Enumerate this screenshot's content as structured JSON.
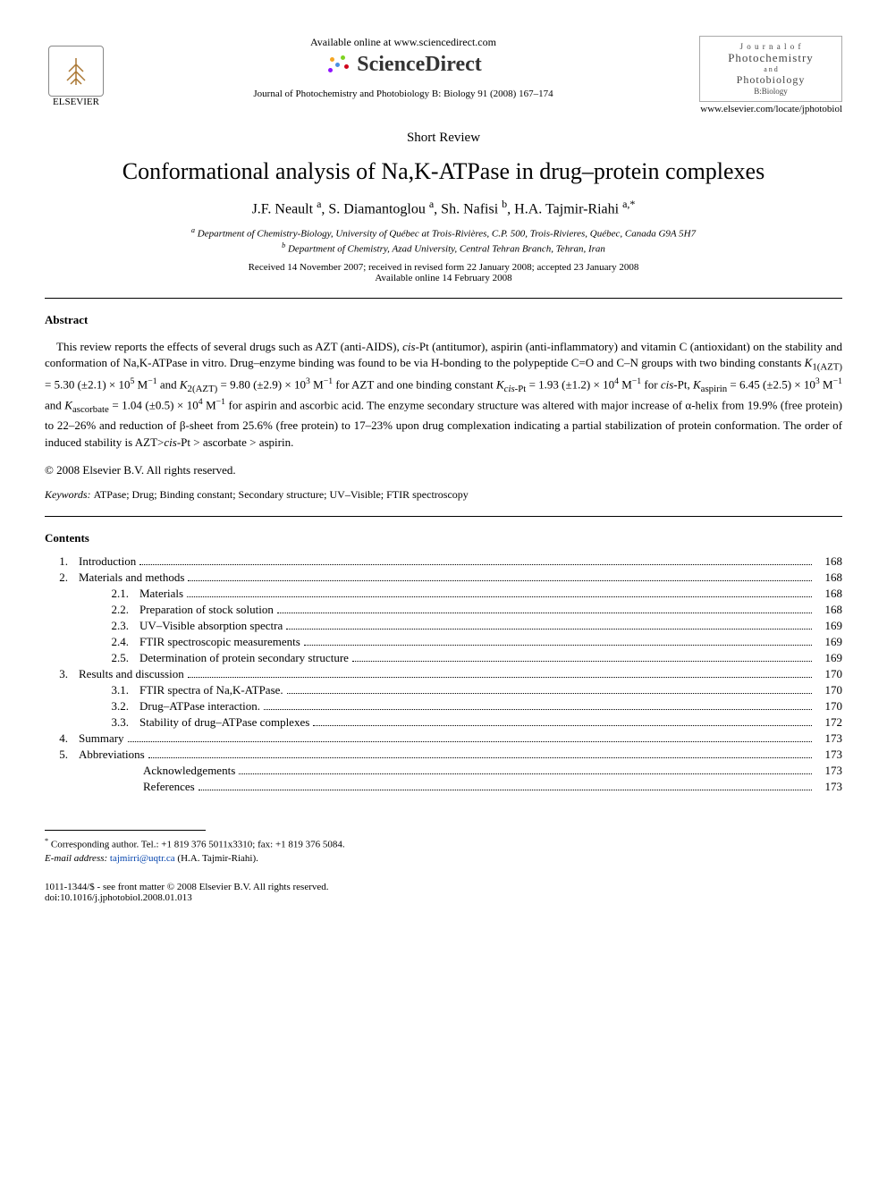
{
  "header": {
    "available_online": "Available online at www.sciencedirect.com",
    "brand": "ScienceDirect",
    "elsevier": "ELSEVIER",
    "journal_citation": "Journal of Photochemistry and Photobiology B: Biology 91 (2008) 167–174",
    "locate_url": "www.elsevier.com/locate/jphotobiol",
    "journal_box": {
      "line1": "J o u r n a l   o f",
      "line2": "Photochemistry",
      "line3": "a n d",
      "line4": "Photobiology",
      "line5": "B:Biology"
    }
  },
  "article": {
    "type": "Short Review",
    "title": "Conformational analysis of Na,K-ATPase in drug–protein complexes",
    "authors_html": "J.F. Neault <sup>a</sup>, S. Diamantoglou <sup>a</sup>, Sh. Nafisi <sup>b</sup>, H.A. Tajmir-Riahi <sup>a,*</sup>",
    "affiliations": [
      "<sup>a</sup> Department of Chemistry-Biology, University of Québec at Trois-Rivières, C.P. 500, Trois-Rivieres, Québec, Canada G9A 5H7",
      "<sup>b</sup> Department of Chemistry, Azad University, Central Tehran Branch, Tehran, Iran"
    ],
    "received": "Received 14 November 2007; received in revised form 22 January 2008; accepted 23 January 2008",
    "available": "Available online 14 February 2008"
  },
  "abstract": {
    "heading": "Abstract",
    "body_html": "This review reports the effects of several drugs such as AZT (anti-AIDS), <i>cis</i>-Pt (antitumor), aspirin (anti-inflammatory) and vitamin C (antioxidant) on the stability and conformation of Na,K-ATPase in vitro. Drug–enzyme binding was found to be via H-bonding to the polypeptide C=O and C–N groups with two binding constants <i>K</i><sub>1(AZT)</sub> = 5.30 (±2.1) × 10<sup>5</sup> M<sup>−1</sup> and <i>K</i><sub>2(AZT)</sub> = 9.80 (±2.9) × 10<sup>3</sup> M<sup>−1</sup> for AZT and one binding constant <i>K</i><sub><i>cis</i>-Pt</sub> = 1.93 (±1.2) × 10<sup>4</sup> M<sup>−1</sup> for <i>cis</i>-Pt, <i>K</i><sub>aspirin</sub> = 6.45 (±2.5) × 10<sup>3</sup> M<sup>−1</sup> and <i>K</i><sub>ascorbate</sub> = 1.04 (±0.5) × 10<sup>4</sup> M<sup>−1</sup> for aspirin and ascorbic acid. The enzyme secondary structure was altered with major increase of α-helix from 19.9% (free protein) to 22–26% and reduction of β-sheet from 25.6% (free protein) to 17–23% upon drug complexation indicating a partial stabilization of protein conformation. The order of induced stability is AZT&gt;<i>cis</i>-Pt &gt; ascorbate &gt; aspirin.",
    "copyright": "© 2008 Elsevier B.V. All rights reserved."
  },
  "keywords": {
    "label": "Keywords:",
    "list": "ATPase; Drug; Binding constant; Secondary structure; UV–Visible; FTIR spectroscopy"
  },
  "contents": {
    "heading": "Contents",
    "items": [
      {
        "num": "1.",
        "title": "Introduction",
        "page": "168",
        "level": 1
      },
      {
        "num": "2.",
        "title": "Materials and methods",
        "page": "168",
        "level": 1
      },
      {
        "num": "2.1.",
        "title": "Materials",
        "page": "168",
        "level": 2
      },
      {
        "num": "2.2.",
        "title": "Preparation of stock solution",
        "page": "168",
        "level": 2
      },
      {
        "num": "2.3.",
        "title": "UV–Visible absorption spectra",
        "page": "169",
        "level": 2
      },
      {
        "num": "2.4.",
        "title": "FTIR spectroscopic measurements",
        "page": "169",
        "level": 2
      },
      {
        "num": "2.5.",
        "title": "Determination of protein secondary structure",
        "page": "169",
        "level": 2
      },
      {
        "num": "3.",
        "title": "Results and discussion",
        "page": "170",
        "level": 1
      },
      {
        "num": "3.1.",
        "title": "FTIR spectra of Na,K-ATPase.",
        "page": "170",
        "level": 2
      },
      {
        "num": "3.2.",
        "title": "Drug–ATPase interaction.",
        "page": "170",
        "level": 2
      },
      {
        "num": "3.3.",
        "title": "Stability of drug–ATPase complexes",
        "page": "172",
        "level": 2
      },
      {
        "num": "4.",
        "title": "Summary",
        "page": "173",
        "level": 1
      },
      {
        "num": "5.",
        "title": "Abbreviations",
        "page": "173",
        "level": 1
      },
      {
        "num": "",
        "title": "Acknowledgements",
        "page": "173",
        "level": 2
      },
      {
        "num": "",
        "title": "References",
        "page": "173",
        "level": 2
      }
    ]
  },
  "footnotes": {
    "corresponding": "Corresponding author. Tel.: +1 819 376 5011x3310; fax: +1 819 376 5084.",
    "email_label": "E-mail address:",
    "email": "tajmirri@uqtr.ca",
    "email_paren": "(H.A. Tajmir-Riahi)."
  },
  "footer": {
    "issn": "1011-1344/$ - see front matter © 2008 Elsevier B.V. All rights reserved.",
    "doi": "doi:10.1016/j.jphotobiol.2008.01.013"
  },
  "styling": {
    "body_font": "Times New Roman",
    "title_fontsize_pt": 20,
    "body_fontsize_pt": 10,
    "link_color": "#0645ad",
    "text_color": "#000000",
    "background_color": "#ffffff",
    "rule_color": "#000000",
    "sd_dot_colors": [
      "#f5a623",
      "#7ed321",
      "#4a90e2",
      "#d0021b",
      "#9013fe"
    ]
  }
}
